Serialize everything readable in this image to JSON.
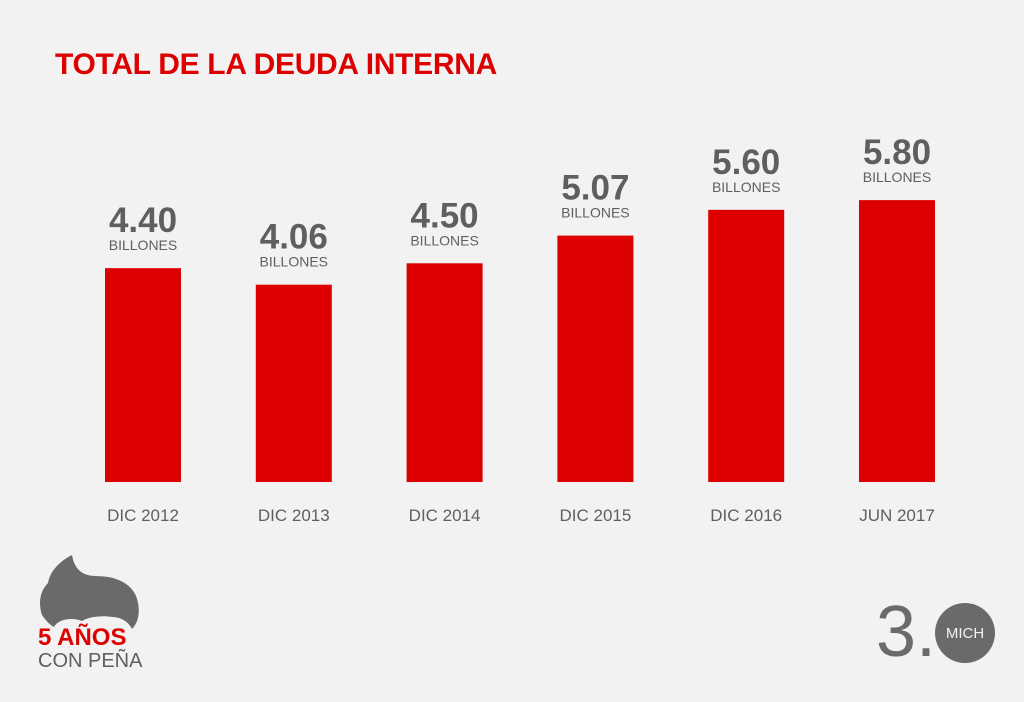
{
  "chart_data": {
    "type": "bar",
    "title": "TOTAL DE LA DEUDA INTERNA",
    "categories": [
      "DIC 2012",
      "DIC 2013",
      "DIC 2014",
      "DIC 2015",
      "DIC 2016",
      "JUN 2017"
    ],
    "values": [
      4.4,
      4.06,
      4.5,
      5.07,
      5.6,
      5.8
    ],
    "value_labels": [
      "4.40",
      "4.06",
      "4.50",
      "5.07",
      "5.60",
      "5.80"
    ],
    "unit_label": "BILLONES",
    "xlabel": "",
    "ylabel": "",
    "ylim": [
      0,
      6
    ],
    "grid": false,
    "legend": "none",
    "bar_color": "#dd0000"
  },
  "branding": {
    "left_line1": "5 AÑOS",
    "left_line2": "CON PEÑA",
    "right_number": "3.",
    "right_circle": "MICH"
  },
  "colors": {
    "accent": "#dd0000",
    "text_gray": "#5f5f5f",
    "background": "#f2f2f2"
  }
}
